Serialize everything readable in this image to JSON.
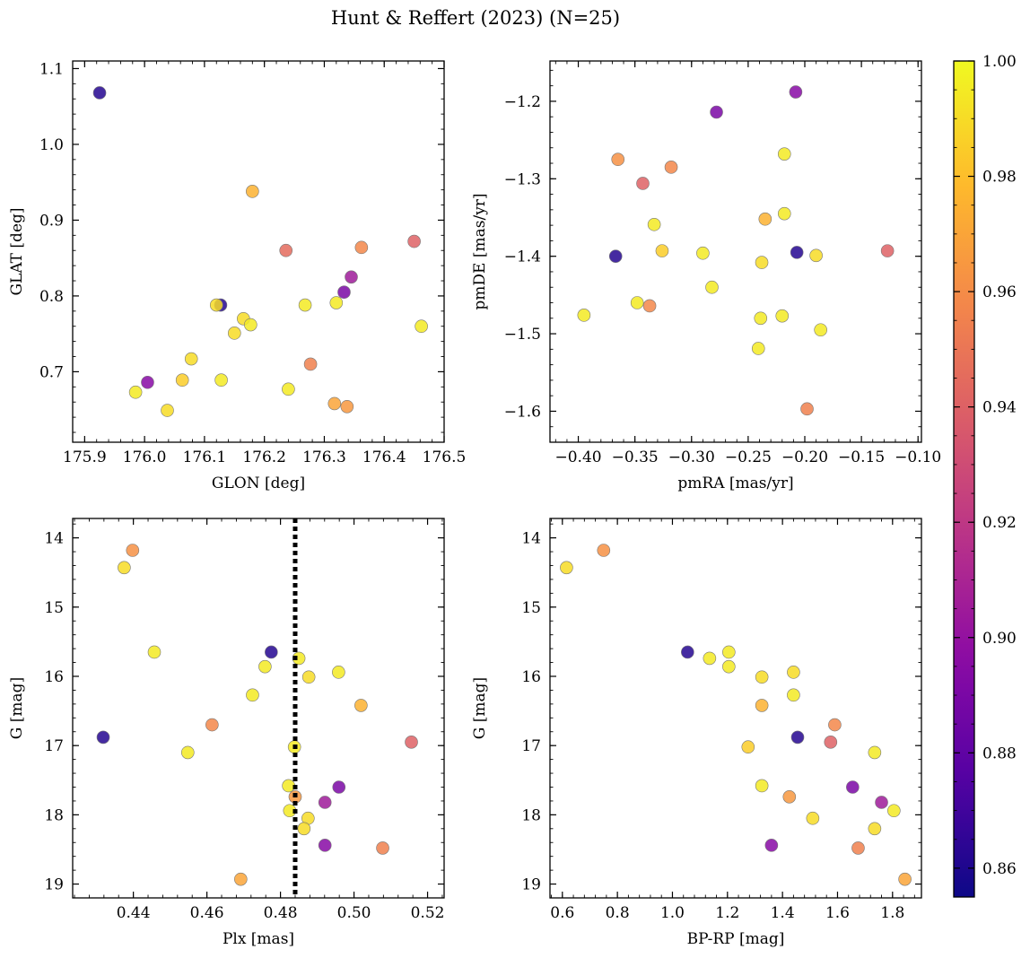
{
  "figure_title": "Hunt & Reffert (2023) (N=25)",
  "colorbar": {
    "min": 0.855,
    "max": 1.0,
    "ticks": [
      0.86,
      0.88,
      0.9,
      0.92,
      0.94,
      0.96,
      0.98,
      1.0
    ],
    "tick_labels": [
      "0.86",
      "0.88",
      "0.90",
      "0.92",
      "0.94",
      "0.96",
      "0.98",
      "1.00"
    ],
    "colormap": "plasma"
  },
  "chart_data": [
    {
      "id": "glon-glat",
      "type": "scatter",
      "xlabel": "GLON [deg]",
      "ylabel": "GLAT [deg]",
      "xlim": [
        175.88,
        176.5
      ],
      "ylim": [
        0.607,
        1.11
      ],
      "invert_y": false,
      "xticks": [
        175.9,
        176.0,
        176.1,
        176.2,
        176.3,
        176.4,
        176.5
      ],
      "xtick_labels": [
        "175.9",
        "176.0",
        "176.1",
        "176.2",
        "176.3",
        "176.4",
        "176.5"
      ],
      "yticks": [
        0.7,
        0.8,
        0.9,
        1.0,
        1.1
      ],
      "ytick_labels": [
        "0.7",
        "0.8",
        "0.9",
        "1.0",
        "1.1"
      ],
      "x": [
        175.925,
        176.18,
        176.236,
        176.362,
        176.45,
        176.345,
        176.333,
        176.127,
        176.12,
        176.268,
        176.32,
        176.165,
        176.177,
        176.15,
        176.462,
        176.078,
        176.005,
        175.985,
        176.063,
        176.128,
        176.24,
        176.038,
        176.277,
        176.317,
        176.338
      ],
      "y": [
        1.068,
        0.938,
        0.86,
        0.864,
        0.872,
        0.825,
        0.805,
        0.788,
        0.788,
        0.788,
        0.791,
        0.77,
        0.762,
        0.751,
        0.76,
        0.717,
        0.686,
        0.673,
        0.689,
        0.689,
        0.677,
        0.649,
        0.71,
        0.658,
        0.654
      ],
      "c": [
        0.862,
        0.975,
        0.945,
        0.958,
        0.94,
        0.905,
        0.89,
        0.862,
        0.99,
        0.995,
        0.995,
        0.99,
        0.995,
        0.99,
        0.995,
        0.99,
        0.895,
        0.995,
        0.985,
        0.995,
        0.995,
        0.99,
        0.955,
        0.97,
        0.965
      ]
    },
    {
      "id": "pmra-pmde",
      "type": "scatter",
      "xlabel": "pmRA [mas/yr]",
      "ylabel": "pmDE [mas/yr]",
      "xlim": [
        -0.425,
        -0.097
      ],
      "ylim": [
        -1.64,
        -1.148
      ],
      "invert_y": false,
      "xticks": [
        -0.4,
        -0.35,
        -0.3,
        -0.25,
        -0.2,
        -0.15,
        -0.1
      ],
      "xtick_labels": [
        "−0.40",
        "−0.35",
        "−0.30",
        "−0.25",
        "−0.20",
        "−0.15",
        "−0.10"
      ],
      "yticks": [
        -1.6,
        -1.5,
        -1.4,
        -1.3,
        -1.2
      ],
      "ytick_labels": [
        "−1.6",
        "−1.5",
        "−1.4",
        "−1.3",
        "−1.2"
      ],
      "x": [
        -0.208,
        -0.278,
        -0.218,
        -0.365,
        -0.318,
        -0.343,
        -0.218,
        -0.235,
        -0.333,
        -0.326,
        -0.29,
        -0.367,
        -0.207,
        -0.238,
        -0.19,
        -0.127,
        -0.282,
        -0.395,
        -0.348,
        -0.337,
        -0.239,
        -0.22,
        -0.186,
        -0.241,
        -0.198
      ],
      "y": [
        -1.188,
        -1.214,
        -1.268,
        -1.275,
        -1.285,
        -1.306,
        -1.345,
        -1.352,
        -1.359,
        -1.393,
        -1.396,
        -1.4,
        -1.395,
        -1.408,
        -1.399,
        -1.393,
        -1.44,
        -1.476,
        -1.46,
        -1.464,
        -1.48,
        -1.477,
        -1.495,
        -1.519,
        -1.597
      ],
      "c": [
        0.895,
        0.89,
        0.995,
        0.962,
        0.958,
        0.94,
        0.995,
        0.975,
        0.995,
        0.985,
        0.995,
        0.862,
        0.862,
        0.99,
        0.99,
        0.94,
        0.995,
        0.995,
        0.995,
        0.958,
        0.995,
        0.995,
        0.995,
        0.995,
        0.955
      ]
    },
    {
      "id": "plx-g",
      "type": "scatter",
      "xlabel": "Plx [mas]",
      "ylabel": "G [mag]",
      "xlim": [
        0.4235,
        0.5245
      ],
      "ylim": [
        19.2,
        13.72
      ],
      "invert_y": true,
      "xticks": [
        0.44,
        0.46,
        0.48,
        0.5,
        0.52
      ],
      "xtick_labels": [
        "0.44",
        "0.46",
        "0.48",
        "0.50",
        "0.52"
      ],
      "yticks": [
        14,
        15,
        16,
        17,
        18,
        19
      ],
      "ytick_labels": [
        "14",
        "15",
        "16",
        "17",
        "18",
        "19"
      ],
      "vline": 0.484,
      "x": [
        0.4398,
        0.4375,
        0.4457,
        0.4775,
        0.485,
        0.4958,
        0.4877,
        0.4758,
        0.4724,
        0.5019,
        0.4614,
        0.4548,
        0.4318,
        0.4838,
        0.5156,
        0.4822,
        0.4959,
        0.484,
        0.4825,
        0.4921,
        0.4875,
        0.4864,
        0.4921,
        0.5078,
        0.4692
      ],
      "y": [
        14.18,
        14.43,
        15.65,
        15.65,
        15.74,
        15.94,
        16.01,
        15.86,
        16.27,
        16.42,
        16.7,
        17.1,
        16.88,
        17.02,
        16.95,
        17.58,
        17.6,
        17.74,
        17.94,
        17.82,
        18.05,
        18.2,
        18.44,
        18.48,
        18.93
      ],
      "c": [
        0.962,
        0.99,
        0.995,
        0.862,
        0.995,
        0.995,
        0.99,
        0.995,
        0.995,
        0.975,
        0.958,
        0.995,
        0.862,
        0.995,
        0.94,
        0.995,
        0.89,
        0.965,
        0.995,
        0.905,
        0.99,
        0.99,
        0.895,
        0.955,
        0.97
      ]
    },
    {
      "id": "bprp-g",
      "type": "scatter",
      "xlabel": "BP-RP [mag]",
      "ylabel": "G [mag]",
      "xlim": [
        0.555,
        1.905
      ],
      "ylim": [
        19.2,
        13.72
      ],
      "invert_y": true,
      "xticks": [
        0.6,
        0.8,
        1.0,
        1.2,
        1.4,
        1.6,
        1.8
      ],
      "xtick_labels": [
        "0.6",
        "0.8",
        "1.0",
        "1.2",
        "1.4",
        "1.6",
        "1.8"
      ],
      "yticks": [
        14,
        15,
        16,
        17,
        18,
        19
      ],
      "ytick_labels": [
        "14",
        "15",
        "16",
        "17",
        "18",
        "19"
      ],
      "x": [
        0.615,
        0.75,
        1.055,
        1.135,
        1.205,
        1.205,
        1.325,
        1.44,
        1.44,
        1.325,
        1.59,
        1.575,
        1.455,
        1.275,
        1.735,
        1.325,
        1.655,
        1.425,
        1.76,
        1.805,
        1.51,
        1.735,
        1.36,
        1.675,
        1.845
      ],
      "y": [
        14.43,
        14.18,
        15.65,
        15.74,
        15.65,
        15.86,
        16.01,
        15.94,
        16.27,
        16.42,
        16.7,
        16.95,
        16.88,
        17.02,
        17.1,
        17.58,
        17.6,
        17.74,
        17.82,
        17.94,
        18.05,
        18.2,
        18.44,
        18.48,
        18.93
      ],
      "c": [
        0.99,
        0.962,
        0.862,
        0.995,
        0.995,
        0.995,
        0.99,
        0.99,
        0.995,
        0.975,
        0.958,
        0.94,
        0.862,
        0.985,
        0.995,
        0.995,
        0.89,
        0.965,
        0.905,
        0.995,
        0.99,
        0.99,
        0.895,
        0.955,
        0.97
      ]
    }
  ]
}
